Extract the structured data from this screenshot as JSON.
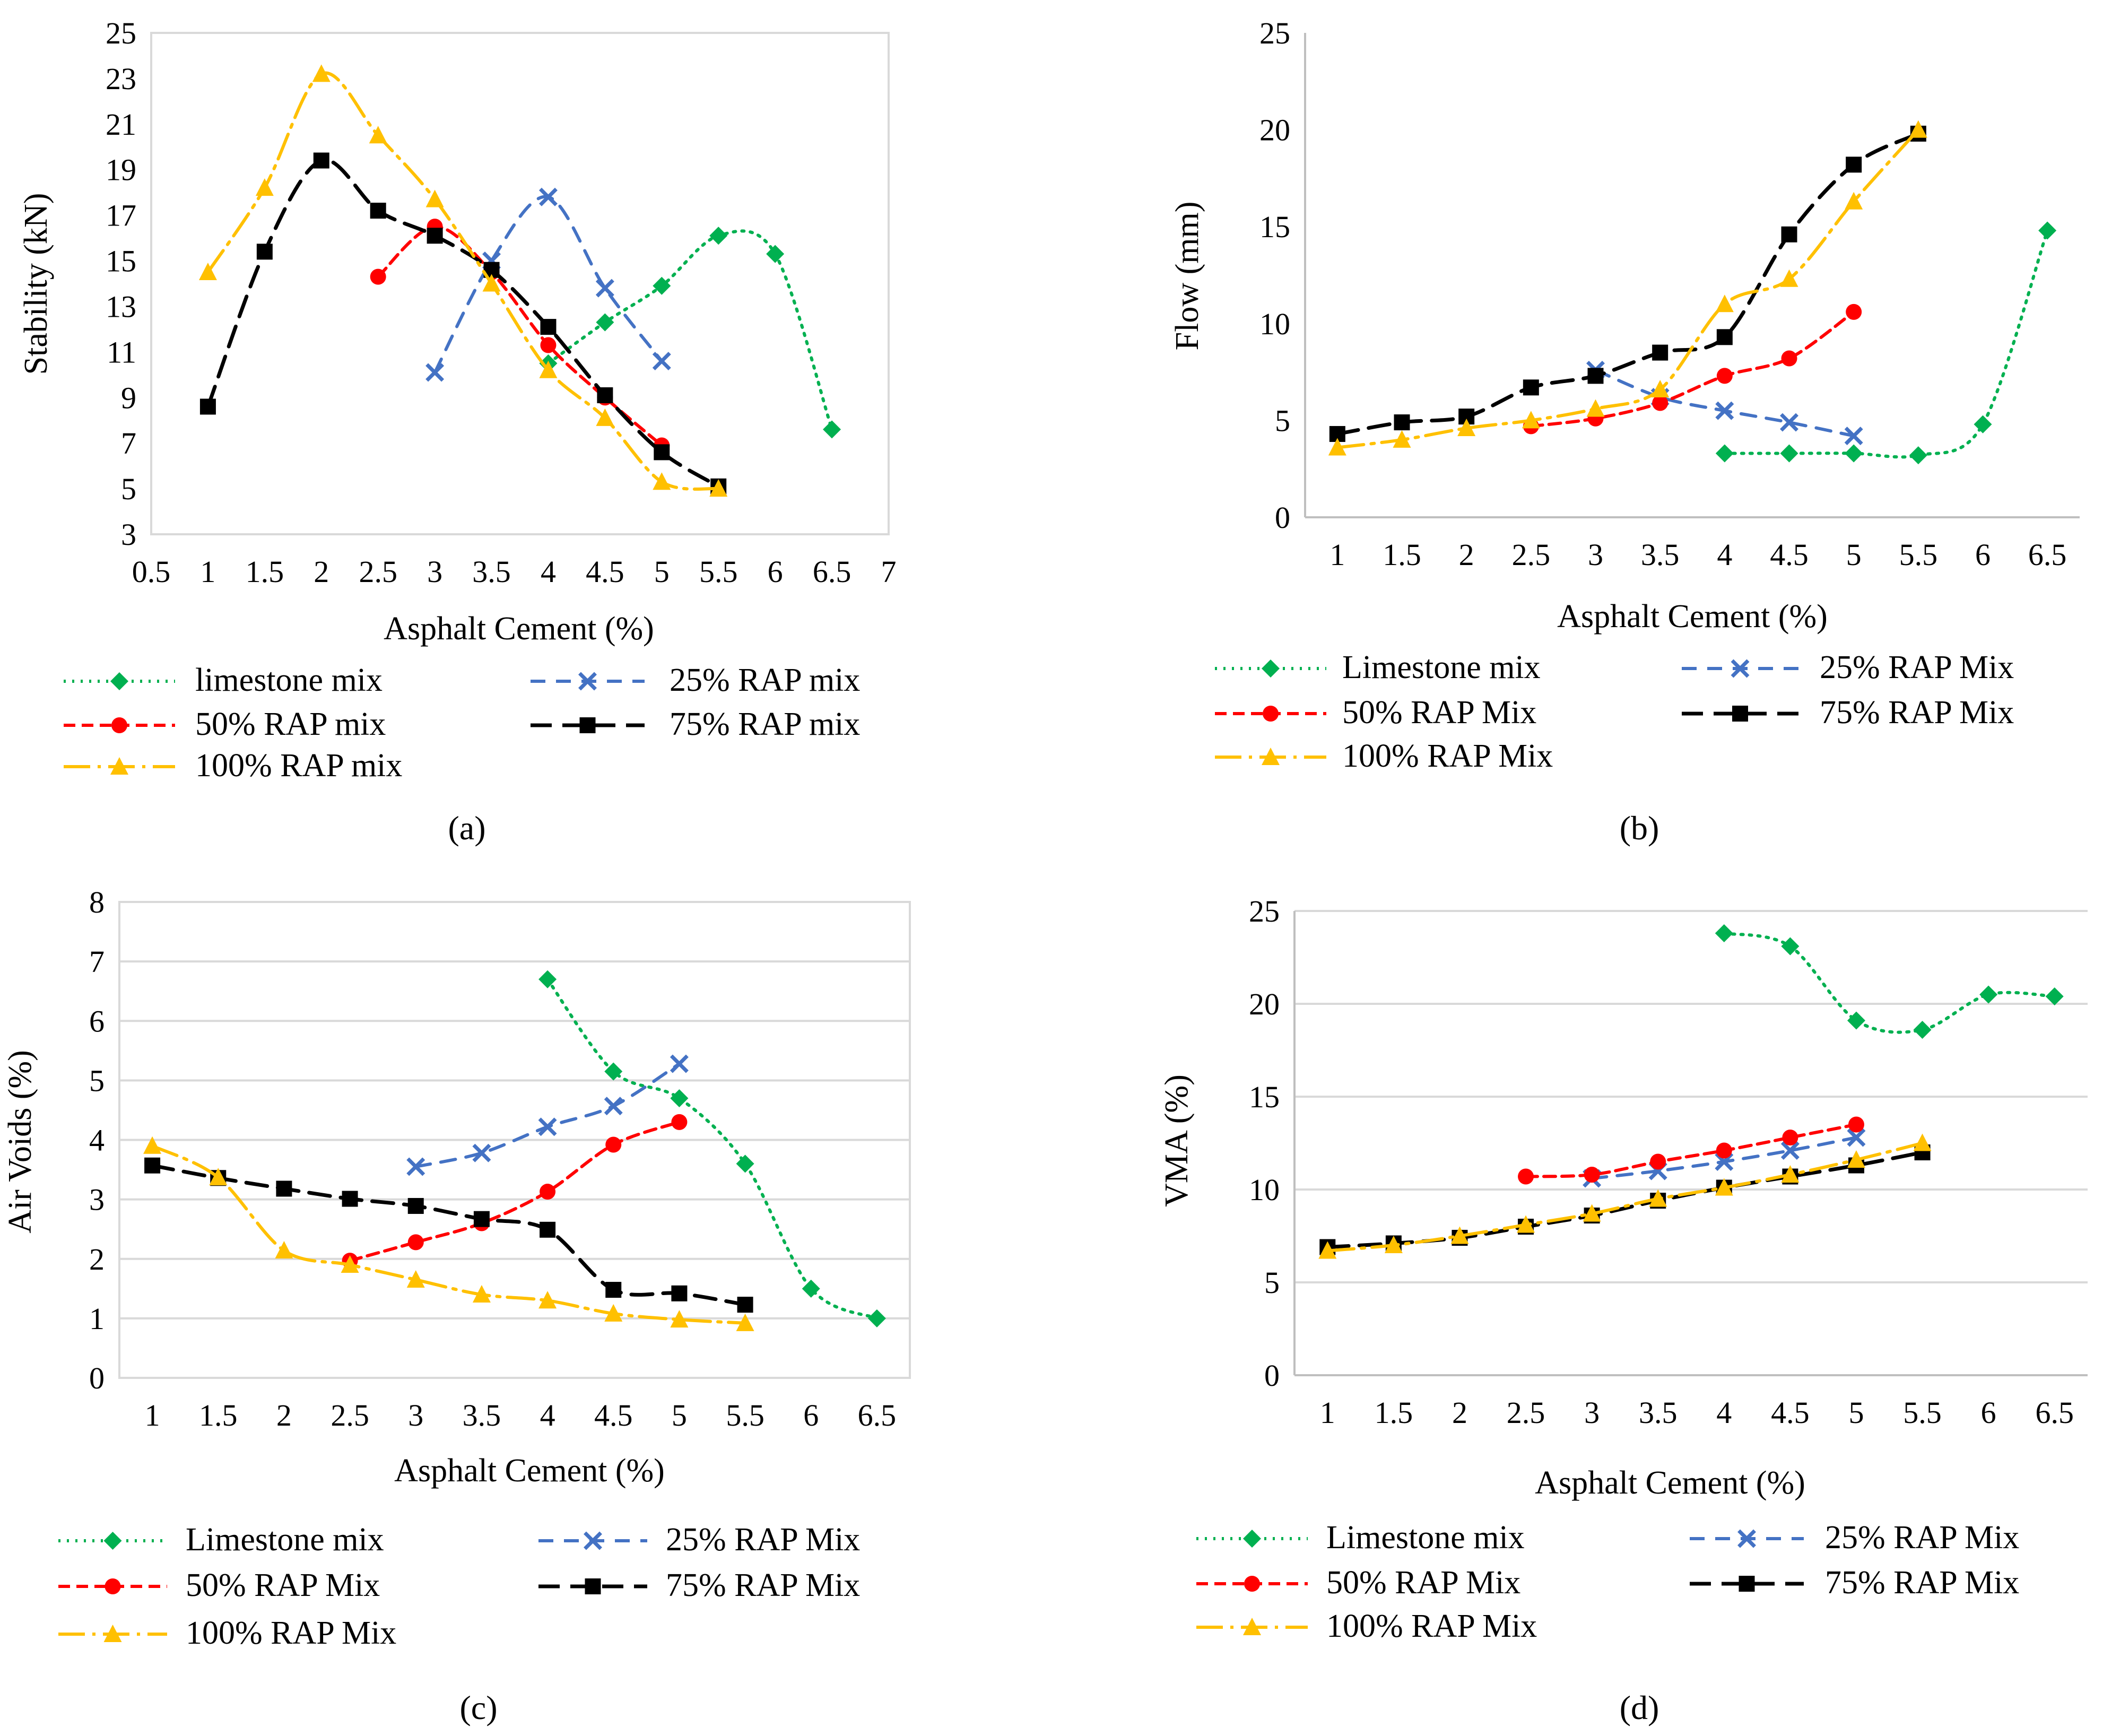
{
  "styles": {
    "limestone": {
      "color": "#00b050",
      "dash": "4 12",
      "marker": "diamond",
      "width": 6
    },
    "rap25": {
      "color": "#4472c4",
      "dash": "28 20",
      "marker": "x",
      "width": 6
    },
    "rap50": {
      "color": "#ff0000",
      "dash": "22 12",
      "marker": "circle",
      "width": 6
    },
    "rap75": {
      "color": "#000000",
      "dash": "40 20",
      "marker": "square",
      "width": 7
    },
    "rap100": {
      "color": "#ffc000",
      "dash": "50 14 6 14",
      "marker": "triangle",
      "width": 6
    }
  },
  "chart_data": [
    {
      "panel": "a",
      "panel_label": "(a)",
      "type": "line",
      "xlabel": "Asphalt Cement (%)",
      "ylabel": "Stability (kN)",
      "xlim": [
        0.5,
        7
      ],
      "ylim": [
        3,
        25
      ],
      "xticks": [
        "0.5",
        "1",
        "1.5",
        "2",
        "2.5",
        "3",
        "3.5",
        "4",
        "4.5",
        "5",
        "5.5",
        "6",
        "6.5",
        "7"
      ],
      "yticks": [
        "3",
        "5",
        "7",
        "9",
        "11",
        "13",
        "15",
        "17",
        "19",
        "21",
        "23",
        "25"
      ],
      "grid": false,
      "series": [
        {
          "key": "limestone",
          "name": "limestone mix",
          "x": [
            4,
            4.5,
            5,
            5.5,
            6,
            6.5
          ],
          "y": [
            10.5,
            12.3,
            13.9,
            16.1,
            15.3,
            7.6
          ]
        },
        {
          "key": "rap25",
          "name": "25% RAP mix",
          "x": [
            3,
            3.5,
            4,
            4.5,
            5
          ],
          "y": [
            10.1,
            15.0,
            17.8,
            13.8,
            10.6
          ]
        },
        {
          "key": "rap50",
          "name": "50% RAP mix",
          "x": [
            2.5,
            3,
            3.5,
            4,
            4.5,
            5
          ],
          "y": [
            14.3,
            16.5,
            14.5,
            11.3,
            9.0,
            6.9
          ]
        },
        {
          "key": "rap75",
          "name": "75% RAP mix",
          "x": [
            1,
            1.5,
            2,
            2.5,
            3,
            3.5,
            4,
            4.5,
            5,
            5.5
          ],
          "y": [
            8.6,
            15.4,
            19.4,
            17.2,
            16.1,
            14.6,
            12.1,
            9.1,
            6.6,
            5.1
          ]
        },
        {
          "key": "rap100",
          "name": "100% RAP mix",
          "x": [
            1,
            1.5,
            2,
            2.5,
            3,
            3.5,
            4,
            4.5,
            5,
            5.5
          ],
          "y": [
            14.5,
            18.2,
            23.2,
            20.5,
            17.7,
            14.0,
            10.2,
            8.1,
            5.3,
            5.0
          ]
        }
      ]
    },
    {
      "panel": "b",
      "panel_label": "(b)",
      "type": "line",
      "xlabel": "Asphalt Cement (%)",
      "ylabel": "Flow (mm)",
      "xlim": [
        0.75,
        6.75
      ],
      "ylim": [
        0,
        25
      ],
      "xticks": [
        "1",
        "1.5",
        "2",
        "2.5",
        "3",
        "3.5",
        "4",
        "4.5",
        "5",
        "5.5",
        "6",
        "6.5"
      ],
      "yticks": [
        "0",
        "5",
        "10",
        "15",
        "20",
        "25"
      ],
      "grid": false,
      "series": [
        {
          "key": "limestone",
          "name": "Limestone mix",
          "x": [
            4,
            4.5,
            5,
            5.5,
            6,
            6.5
          ],
          "y": [
            3.3,
            3.3,
            3.3,
            3.2,
            4.8,
            14.8
          ]
        },
        {
          "key": "rap25",
          "name": "25% RAP Mix",
          "x": [
            3,
            3.5,
            4,
            4.5,
            5
          ],
          "y": [
            7.6,
            6.2,
            5.5,
            4.9,
            4.2
          ]
        },
        {
          "key": "rap50",
          "name": "50% RAP Mix",
          "x": [
            2.5,
            3,
            3.5,
            4,
            4.5,
            5
          ],
          "y": [
            4.7,
            5.1,
            5.9,
            7.3,
            8.2,
            10.6
          ]
        },
        {
          "key": "rap75",
          "name": "75% RAP Mix",
          "x": [
            1,
            1.5,
            2,
            2.5,
            3,
            3.5,
            4,
            4.5,
            5,
            5.5
          ],
          "y": [
            4.3,
            4.9,
            5.2,
            6.7,
            7.3,
            8.5,
            9.3,
            14.6,
            18.2,
            19.8
          ]
        },
        {
          "key": "rap100",
          "name": "100% RAP Mix",
          "x": [
            1,
            1.5,
            2,
            2.5,
            3,
            3.5,
            4,
            4.5,
            5,
            5.5
          ],
          "y": [
            3.6,
            4.0,
            4.6,
            5.0,
            5.6,
            6.6,
            11.0,
            12.3,
            16.3,
            20.0
          ]
        }
      ]
    },
    {
      "panel": "c",
      "panel_label": "(c)",
      "type": "line",
      "xlabel": "Asphalt Cement (%)",
      "ylabel": "Air Voids (%)",
      "xlim": [
        0.75,
        6.75
      ],
      "ylim": [
        0,
        8
      ],
      "xticks": [
        "1",
        "1.5",
        "2",
        "2.5",
        "3",
        "3.5",
        "4",
        "4.5",
        "5",
        "5.5",
        "6",
        "6.5"
      ],
      "yticks": [
        "0",
        "1",
        "2",
        "3",
        "4",
        "5",
        "6",
        "7",
        "8"
      ],
      "grid": true,
      "series": [
        {
          "key": "limestone",
          "name": "Limestone mix",
          "x": [
            4,
            4.5,
            5,
            5.5,
            6,
            6.5
          ],
          "y": [
            6.7,
            5.15,
            4.7,
            3.6,
            1.5,
            1.0
          ]
        },
        {
          "key": "rap25",
          "name": "25% RAP Mix",
          "x": [
            3,
            3.5,
            4,
            4.5,
            5
          ],
          "y": [
            3.55,
            3.78,
            4.22,
            4.57,
            5.28
          ]
        },
        {
          "key": "rap50",
          "name": "50% RAP Mix",
          "x": [
            2.5,
            3,
            3.5,
            4,
            4.5,
            5
          ],
          "y": [
            1.97,
            2.28,
            2.6,
            3.13,
            3.92,
            4.3
          ]
        },
        {
          "key": "rap75",
          "name": "75% RAP Mix",
          "x": [
            1,
            1.5,
            2,
            2.5,
            3,
            3.5,
            4,
            4.5,
            5,
            5.5
          ],
          "y": [
            3.57,
            3.36,
            3.18,
            3.01,
            2.89,
            2.67,
            2.49,
            1.48,
            1.42,
            1.23
          ]
        },
        {
          "key": "rap100",
          "name": "100% RAP Mix",
          "x": [
            1,
            1.5,
            2,
            2.5,
            3,
            3.5,
            4,
            4.5,
            5,
            5.5
          ],
          "y": [
            3.9,
            3.37,
            2.14,
            1.9,
            1.65,
            1.4,
            1.3,
            1.08,
            0.98,
            0.92
          ]
        }
      ]
    },
    {
      "panel": "d",
      "panel_label": "(d)",
      "type": "line",
      "xlabel": "Asphalt Cement (%)",
      "ylabel": "VMA (%)",
      "xlim": [
        0.75,
        6.75
      ],
      "ylim": [
        0,
        25
      ],
      "xticks": [
        "1",
        "1.5",
        "2",
        "2.5",
        "3",
        "3.5",
        "4",
        "4.5",
        "5",
        "5.5",
        "6",
        "6.5"
      ],
      "yticks": [
        "0",
        "5",
        "10",
        "15",
        "20",
        "25"
      ],
      "grid": true,
      "series": [
        {
          "key": "limestone",
          "name": "Limestone mix",
          "x": [
            4,
            4.5,
            5,
            5.5,
            6,
            6.5
          ],
          "y": [
            23.8,
            23.1,
            19.1,
            18.6,
            20.5,
            20.4
          ]
        },
        {
          "key": "rap25",
          "name": "25% RAP Mix",
          "x": [
            3,
            3.5,
            4,
            4.5,
            5
          ],
          "y": [
            10.6,
            11.0,
            11.5,
            12.1,
            12.8
          ]
        },
        {
          "key": "rap50",
          "name": "50% RAP Mix",
          "x": [
            2.5,
            3,
            3.5,
            4,
            4.5,
            5
          ],
          "y": [
            10.7,
            10.8,
            11.5,
            12.1,
            12.8,
            13.5
          ]
        },
        {
          "key": "rap75",
          "name": "75% RAP Mix",
          "x": [
            1,
            1.5,
            2,
            2.5,
            3,
            3.5,
            4,
            4.5,
            5,
            5.5
          ],
          "y": [
            6.9,
            7.1,
            7.4,
            8.0,
            8.6,
            9.4,
            10.1,
            10.7,
            11.3,
            12.0
          ]
        },
        {
          "key": "rap100",
          "name": "100% RAP Mix",
          "x": [
            1,
            1.5,
            2,
            2.5,
            3,
            3.5,
            4,
            4.5,
            5,
            5.5
          ],
          "y": [
            6.7,
            7.0,
            7.5,
            8.1,
            8.7,
            9.5,
            10.1,
            10.8,
            11.6,
            12.5
          ]
        }
      ]
    }
  ]
}
